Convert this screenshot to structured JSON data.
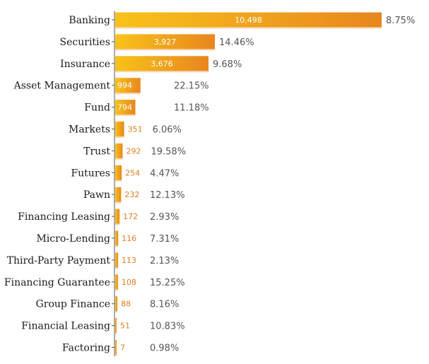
{
  "chart_data": {
    "type": "bar",
    "orientation": "horizontal",
    "categories": [
      "Banking",
      "Securities",
      "Insurance",
      "Asset Management",
      "Fund",
      "Markets",
      "Trust",
      "Futures",
      "Pawn",
      "Financing Leasing",
      "Micro-Lending",
      "Third-Party Payment",
      "Financing Guarantee",
      "Group Finance",
      "Financial Leasing",
      "Factoring"
    ],
    "values": [
      10498,
      3927,
      3676,
      994,
      794,
      351,
      292,
      254,
      232,
      172,
      116,
      113,
      108,
      88,
      51,
      7
    ],
    "value_labels": [
      "10,498",
      "3,927",
      "3,676",
      "994",
      "794",
      "351",
      "292",
      "254",
      "232",
      "172",
      "116",
      "113",
      "108",
      "88",
      "51",
      "7"
    ],
    "percent_labels": [
      "8.75%",
      "14.46%",
      "9.68%",
      "22.15%",
      "11.18%",
      "6.06%",
      "19.58%",
      "4.47%",
      "12.13%",
      "2.93%",
      "7.31%",
      "2.13%",
      "15.25%",
      "8.16%",
      "10.83%",
      "0.98%"
    ],
    "xlim": [
      0,
      10498
    ],
    "grid": false,
    "legend": "none",
    "colors": {
      "bar_start": "#f8c21a",
      "bar_end": "#e8861e",
      "bar_shadow": "#f6c9a1",
      "axis": "#555555",
      "value_outside": "#e07f1f",
      "value_inside": "#ffffff",
      "percent": "#555555",
      "category": "#1a1a1a"
    }
  }
}
